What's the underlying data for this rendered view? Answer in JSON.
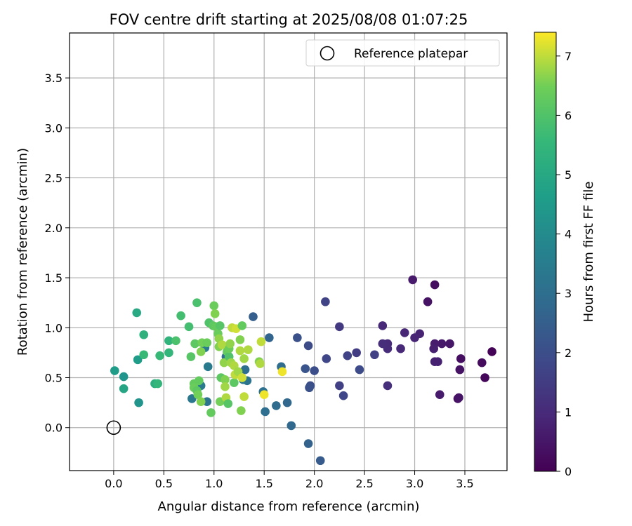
{
  "chart_data": {
    "type": "scatter",
    "title": "FOV centre drift starting at 2025/08/08 01:07:25",
    "xlabel": "Angular distance from reference (arcmin)",
    "ylabel": "Rotation from reference (arcmin)",
    "xlim": [
      -0.44,
      3.92
    ],
    "ylim": [
      -0.43,
      3.95
    ],
    "xticks": [
      "0.0",
      "0.5",
      "1.0",
      "1.5",
      "2.0",
      "2.5",
      "3.0",
      "3.5"
    ],
    "yticks": [
      "0.0",
      "0.5",
      "1.0",
      "1.5",
      "2.0",
      "2.5",
      "3.0",
      "3.5"
    ],
    "grid": true,
    "legend": {
      "placement": "top-right",
      "entries": [
        "Reference platepar"
      ]
    },
    "reference_point": {
      "x": 0.0,
      "y": 0.0
    },
    "colorbar": {
      "label": "Hours from first FF file",
      "min": 0,
      "max": 7.4,
      "ticks": [
        "0",
        "1",
        "2",
        "3",
        "4",
        "5",
        "6",
        "7"
      ],
      "colormap": "viridis"
    },
    "points": [
      {
        "x": 3.77,
        "y": 0.76,
        "c": 0.05
      },
      {
        "x": 3.7,
        "y": 0.5,
        "c": 0.15
      },
      {
        "x": 3.67,
        "y": 0.65,
        "c": 0.25
      },
      {
        "x": 3.46,
        "y": 0.69,
        "c": 0.3
      },
      {
        "x": 3.45,
        "y": 0.58,
        "c": 0.4
      },
      {
        "x": 3.43,
        "y": 0.29,
        "c": 0.35
      },
      {
        "x": 3.44,
        "y": 0.3,
        "c": 0.45
      },
      {
        "x": 3.35,
        "y": 0.84,
        "c": 0.5
      },
      {
        "x": 3.27,
        "y": 0.84,
        "c": 0.55
      },
      {
        "x": 3.25,
        "y": 0.33,
        "c": 0.6
      },
      {
        "x": 3.2,
        "y": 1.43,
        "c": 0.3
      },
      {
        "x": 3.2,
        "y": 0.84,
        "c": 0.65
      },
      {
        "x": 3.19,
        "y": 0.79,
        "c": 0.7
      },
      {
        "x": 3.2,
        "y": 0.66,
        "c": 0.75
      },
      {
        "x": 3.23,
        "y": 0.66,
        "c": 0.75
      },
      {
        "x": 3.13,
        "y": 1.26,
        "c": 0.4
      },
      {
        "x": 3.05,
        "y": 0.94,
        "c": 0.8
      },
      {
        "x": 3.0,
        "y": 0.9,
        "c": 0.85
      },
      {
        "x": 2.98,
        "y": 1.48,
        "c": 0.6
      },
      {
        "x": 2.9,
        "y": 0.95,
        "c": 0.9
      },
      {
        "x": 2.86,
        "y": 0.79,
        "c": 0.95
      },
      {
        "x": 2.73,
        "y": 0.84,
        "c": 1.0
      },
      {
        "x": 2.73,
        "y": 0.79,
        "c": 1.05
      },
      {
        "x": 2.68,
        "y": 1.02,
        "c": 0.95
      },
      {
        "x": 2.68,
        "y": 0.84,
        "c": 1.1
      },
      {
        "x": 2.73,
        "y": 0.42,
        "c": 1.15
      },
      {
        "x": 2.6,
        "y": 0.73,
        "c": 1.6
      },
      {
        "x": 2.45,
        "y": 0.58,
        "c": 1.9
      },
      {
        "x": 2.42,
        "y": 0.75,
        "c": 1.5
      },
      {
        "x": 2.33,
        "y": 0.72,
        "c": 1.7
      },
      {
        "x": 2.25,
        "y": 1.01,
        "c": 1.4
      },
      {
        "x": 2.25,
        "y": 0.42,
        "c": 1.6
      },
      {
        "x": 2.29,
        "y": 0.32,
        "c": 1.8
      },
      {
        "x": 2.11,
        "y": 1.26,
        "c": 1.7
      },
      {
        "x": 2.12,
        "y": 0.69,
        "c": 1.8
      },
      {
        "x": 2.0,
        "y": 0.57,
        "c": 2.0
      },
      {
        "x": 1.96,
        "y": 0.42,
        "c": 2.0
      },
      {
        "x": 1.95,
        "y": 0.4,
        "c": 2.1
      },
      {
        "x": 1.94,
        "y": 0.82,
        "c": 1.9
      },
      {
        "x": 1.91,
        "y": 0.59,
        "c": 2.2
      },
      {
        "x": 1.83,
        "y": 0.9,
        "c": 2.1
      },
      {
        "x": 1.94,
        "y": -0.16,
        "c": 2.6
      },
      {
        "x": 2.06,
        "y": -0.33,
        "c": 2.4
      },
      {
        "x": 1.77,
        "y": 0.02,
        "c": 2.8
      },
      {
        "x": 1.73,
        "y": 0.25,
        "c": 2.8
      },
      {
        "x": 1.67,
        "y": 0.61,
        "c": 2.9
      },
      {
        "x": 1.62,
        "y": 0.22,
        "c": 2.9
      },
      {
        "x": 1.55,
        "y": 0.9,
        "c": 2.7
      },
      {
        "x": 1.51,
        "y": 0.16,
        "c": 3.0
      },
      {
        "x": 1.49,
        "y": 0.36,
        "c": 3.1
      },
      {
        "x": 1.39,
        "y": 1.11,
        "c": 2.5
      },
      {
        "x": 1.33,
        "y": 0.47,
        "c": 3.2
      },
      {
        "x": 1.31,
        "y": 0.58,
        "c": 3.0
      },
      {
        "x": 1.29,
        "y": 0.48,
        "c": 3.3
      },
      {
        "x": 1.12,
        "y": 0.71,
        "c": 3.0
      },
      {
        "x": 0.94,
        "y": 0.61,
        "c": 3.4
      },
      {
        "x": 0.93,
        "y": 0.26,
        "c": 3.2
      },
      {
        "x": 0.87,
        "y": 0.42,
        "c": 3.4
      },
      {
        "x": 0.78,
        "y": 0.29,
        "c": 3.3
      },
      {
        "x": 0.91,
        "y": 0.8,
        "c": 3.5
      },
      {
        "x": 0.25,
        "y": 0.25,
        "c": 4.3
      },
      {
        "x": 0.24,
        "y": 0.68,
        "c": 4.6
      },
      {
        "x": 0.1,
        "y": 0.51,
        "c": 4.3
      },
      {
        "x": 0.01,
        "y": 0.57,
        "c": 4.6
      },
      {
        "x": 0.1,
        "y": 0.39,
        "c": 4.9
      },
      {
        "x": 0.23,
        "y": 1.15,
        "c": 5.0
      },
      {
        "x": 0.3,
        "y": 0.93,
        "c": 5.3
      },
      {
        "x": 0.3,
        "y": 0.73,
        "c": 5.6
      },
      {
        "x": 0.41,
        "y": 0.44,
        "c": 5.2
      },
      {
        "x": 0.44,
        "y": 0.44,
        "c": 5.5
      },
      {
        "x": 0.46,
        "y": 0.72,
        "c": 5.6
      },
      {
        "x": 0.55,
        "y": 0.87,
        "c": 5.4
      },
      {
        "x": 0.55,
        "y": 0.75,
        "c": 5.5
      },
      {
        "x": 0.62,
        "y": 0.87,
        "c": 5.9
      },
      {
        "x": 0.67,
        "y": 1.12,
        "c": 5.8
      },
      {
        "x": 0.75,
        "y": 1.01,
        "c": 5.8
      },
      {
        "x": 0.77,
        "y": 0.71,
        "c": 6.1
      },
      {
        "x": 0.83,
        "y": 1.25,
        "c": 5.9
      },
      {
        "x": 0.81,
        "y": 0.84,
        "c": 6.2
      },
      {
        "x": 0.8,
        "y": 0.44,
        "c": 6.3
      },
      {
        "x": 0.8,
        "y": 0.4,
        "c": 6.4
      },
      {
        "x": 0.83,
        "y": 0.37,
        "c": 6.2
      },
      {
        "x": 0.85,
        "y": 0.47,
        "c": 6.3
      },
      {
        "x": 0.84,
        "y": 0.33,
        "c": 6.5
      },
      {
        "x": 0.87,
        "y": 0.26,
        "c": 6.6
      },
      {
        "x": 0.87,
        "y": 0.76,
        "c": 6.6
      },
      {
        "x": 0.88,
        "y": 0.85,
        "c": 6.5
      },
      {
        "x": 0.93,
        "y": 0.85,
        "c": 6.4
      },
      {
        "x": 0.95,
        "y": 1.05,
        "c": 6.0
      },
      {
        "x": 0.97,
        "y": 0.15,
        "c": 6.3
      },
      {
        "x": 0.99,
        "y": 1.02,
        "c": 6.2
      },
      {
        "x": 1.0,
        "y": 1.22,
        "c": 6.4
      },
      {
        "x": 1.01,
        "y": 1.14,
        "c": 6.6
      },
      {
        "x": 1.02,
        "y": 1.01,
        "c": 6.3
      },
      {
        "x": 1.04,
        "y": 0.94,
        "c": 6.4
      },
      {
        "x": 1.05,
        "y": 0.89,
        "c": 6.7
      },
      {
        "x": 1.05,
        "y": 0.81,
        "c": 6.6
      },
      {
        "x": 1.06,
        "y": 1.02,
        "c": 6.1
      },
      {
        "x": 1.07,
        "y": 0.5,
        "c": 6.2
      },
      {
        "x": 1.06,
        "y": 0.26,
        "c": 6.5
      },
      {
        "x": 1.08,
        "y": 0.83,
        "c": 6.9
      },
      {
        "x": 1.1,
        "y": 0.65,
        "c": 6.7
      },
      {
        "x": 1.11,
        "y": 0.48,
        "c": 6.6
      },
      {
        "x": 1.11,
        "y": 0.41,
        "c": 6.8
      },
      {
        "x": 1.12,
        "y": 0.3,
        "c": 6.9
      },
      {
        "x": 1.13,
        "y": 0.76,
        "c": 6.3
      },
      {
        "x": 1.14,
        "y": 0.24,
        "c": 6.1
      },
      {
        "x": 1.15,
        "y": 0.71,
        "c": 6.0
      },
      {
        "x": 1.15,
        "y": 0.79,
        "c": 6.4
      },
      {
        "x": 1.16,
        "y": 0.84,
        "c": 6.7
      },
      {
        "x": 1.17,
        "y": 0.65,
        "c": 6.8
      },
      {
        "x": 1.18,
        "y": 1.0,
        "c": 7.0
      },
      {
        "x": 1.2,
        "y": 0.45,
        "c": 6.2
      },
      {
        "x": 1.2,
        "y": 0.62,
        "c": 6.9
      },
      {
        "x": 1.21,
        "y": 0.53,
        "c": 7.0
      },
      {
        "x": 1.22,
        "y": 0.99,
        "c": 7.1
      },
      {
        "x": 1.24,
        "y": 0.56,
        "c": 6.8
      },
      {
        "x": 1.26,
        "y": 0.88,
        "c": 6.6
      },
      {
        "x": 1.26,
        "y": 0.77,
        "c": 6.9
      },
      {
        "x": 1.27,
        "y": 0.17,
        "c": 6.6
      },
      {
        "x": 1.28,
        "y": 1.02,
        "c": 6.3
      },
      {
        "x": 1.28,
        "y": 0.5,
        "c": 7.1
      },
      {
        "x": 1.3,
        "y": 0.69,
        "c": 6.8
      },
      {
        "x": 1.3,
        "y": 0.31,
        "c": 7.0
      },
      {
        "x": 1.34,
        "y": 0.78,
        "c": 6.9
      },
      {
        "x": 1.45,
        "y": 0.66,
        "c": 6.6
      },
      {
        "x": 1.46,
        "y": 0.64,
        "c": 6.9
      },
      {
        "x": 1.47,
        "y": 0.86,
        "c": 7.0
      },
      {
        "x": 1.5,
        "y": 0.33,
        "c": 7.3
      },
      {
        "x": 1.68,
        "y": 0.56,
        "c": 7.3
      }
    ]
  }
}
